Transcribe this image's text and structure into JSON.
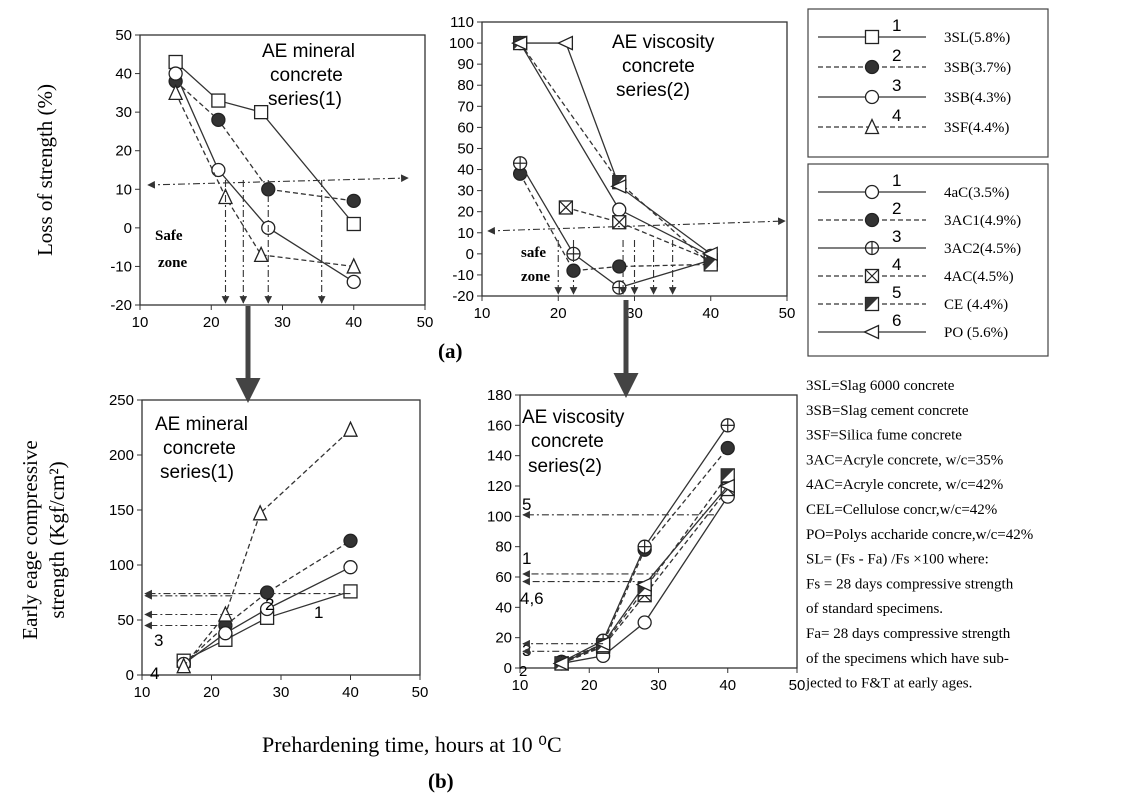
{
  "figure": {
    "label_a": "(a)",
    "label_b": "(b)",
    "x_axis_label": "Prehardening time, hours at 10 ⁰C"
  },
  "panels": {
    "a_left": {
      "title_lines": [
        "AE mineral",
        "concrete",
        "series(1)"
      ],
      "ylabel": "Loss of strength (%)",
      "xlim": [
        10,
        50
      ],
      "ylim": [
        -20,
        50
      ],
      "xticks": [
        10,
        20,
        30,
        40,
        50
      ],
      "yticks": [
        -20,
        -10,
        0,
        10,
        20,
        30,
        40,
        50
      ],
      "zone_label_lines": [
        "Safe",
        "zone"
      ]
    },
    "a_right": {
      "title_lines": [
        "AE viscosity",
        "concrete",
        "series(2)"
      ],
      "xlim": [
        10,
        50
      ],
      "ylim": [
        -20,
        110
      ],
      "xticks": [
        10,
        20,
        30,
        40,
        50
      ],
      "yticks": [
        -20,
        -10,
        0,
        10,
        20,
        30,
        40,
        50,
        60,
        70,
        80,
        90,
        100,
        110
      ],
      "zone_label_lines": [
        "safe",
        "zone"
      ]
    },
    "b_left": {
      "title_lines": [
        "AE mineral",
        "concrete",
        "series(1)"
      ],
      "ylabel_lines": [
        "Early eage compressive",
        "strength (Kgf/cm²)"
      ],
      "xlim": [
        10,
        50
      ],
      "ylim": [
        0,
        250
      ],
      "xticks": [
        10,
        20,
        30,
        40,
        50
      ],
      "yticks": [
        0,
        50,
        100,
        150,
        200,
        250
      ],
      "annotations": [
        "3",
        "4",
        "2",
        "1"
      ]
    },
    "b_right": {
      "title_lines": [
        "AE viscosity",
        "concrete",
        "series(2)"
      ],
      "xlim": [
        10,
        50
      ],
      "ylim": [
        0,
        180
      ],
      "xticks": [
        10,
        20,
        30,
        40,
        50
      ],
      "yticks": [
        0,
        20,
        40,
        60,
        80,
        100,
        120,
        140,
        160,
        180
      ],
      "annotations": [
        "5",
        "1",
        "4,6",
        "3",
        "2"
      ]
    }
  },
  "legend1": [
    {
      "num": "1",
      "label": "3SL(5.8%)"
    },
    {
      "num": "2",
      "label": "3SB(3.7%)"
    },
    {
      "num": "3",
      "label": "3SB(4.3%)"
    },
    {
      "num": "4",
      "label": "3SF(4.4%)"
    }
  ],
  "legend2": [
    {
      "num": "1",
      "label": "4aC(3.5%)"
    },
    {
      "num": "2",
      "label": "3AC1(4.9%)"
    },
    {
      "num": "3",
      "label": "3AC2(4.5%)"
    },
    {
      "num": "4",
      "label": "4AC(4.5%)"
    },
    {
      "num": "5",
      "label": "CE (4.4%)"
    },
    {
      "num": "6",
      "label": "PO (5.6%)"
    }
  ],
  "notes": [
    "3SL=Slag 6000 concrete",
    "3SB=Slag cement concrete",
    "3SF=Silica fume concrete",
    "3AC=Acryle concrete, w/c=35%",
    "4AC=Acryle concrete, w/c=42%",
    "CEL=Cellulose concr,w/c=42%",
    "PO=Polys accharide concre,w/c=42%",
    "SL= (Fs - Fa) /Fs ×100   where:",
    "Fs = 28 days compressive strength",
    "of  standard specimens.",
    "Fa= 28 days  compressive strength",
    "of the  specimens which have sub-",
    "jected to F&T at early ages."
  ],
  "chart_data": [
    {
      "type": "line",
      "title": "AE mineral concrete series(1)",
      "ylabel": "Loss of strength (%)",
      "xlim": [
        10,
        50
      ],
      "ylim": [
        -20,
        50
      ],
      "series": [
        {
          "name": "3SL(5.8%)",
          "marker": "square",
          "dash": "solid",
          "x": [
            15,
            21,
            27,
            40
          ],
          "y": [
            43,
            33,
            30,
            1
          ]
        },
        {
          "name": "3SB(3.7%)",
          "marker": "filled-circle",
          "dash": "dashed",
          "x": [
            15,
            21,
            28,
            40
          ],
          "y": [
            38,
            28,
            10,
            7
          ]
        },
        {
          "name": "3SB(4.3%)",
          "marker": "circle",
          "dash": "solid",
          "x": [
            15,
            21,
            28,
            40
          ],
          "y": [
            40,
            15,
            0,
            -14
          ]
        },
        {
          "name": "3SF(4.4%)",
          "marker": "triangle",
          "dash": "dashed",
          "x": [
            15,
            22,
            27,
            40
          ],
          "y": [
            35,
            8,
            -7,
            -10
          ]
        }
      ]
    },
    {
      "type": "line",
      "title": "AE viscosity concrete series(2)",
      "xlim": [
        10,
        50
      ],
      "ylim": [
        -20,
        110
      ],
      "series": [
        {
          "name": "4aC(3.5%)",
          "marker": "circle",
          "dash": "solid",
          "x": [
            15,
            28,
            40
          ],
          "y": [
            100,
            21,
            -1
          ]
        },
        {
          "name": "3AC1(4.9%)",
          "marker": "filled-circle",
          "dash": "dashed",
          "x": [
            15,
            22,
            28,
            40
          ],
          "y": [
            38,
            -8,
            -6,
            -5
          ]
        },
        {
          "name": "3AC2(4.5%)",
          "marker": "circled-plus",
          "dash": "solid",
          "x": [
            15,
            22,
            28,
            40
          ],
          "y": [
            43,
            0,
            -16,
            -3
          ]
        },
        {
          "name": "4AC(4.5%)",
          "marker": "boxed-x",
          "dash": "dashed",
          "x": [
            21,
            28,
            40
          ],
          "y": [
            22,
            15,
            -3
          ]
        },
        {
          "name": "CE (4.4%)",
          "marker": "half-square",
          "dash": "dashed",
          "x": [
            15,
            28,
            40
          ],
          "y": [
            100,
            34,
            -5
          ]
        },
        {
          "name": "PO (5.6%)",
          "marker": "left-triangle",
          "dash": "solid",
          "x": [
            15,
            21,
            28,
            40
          ],
          "y": [
            100,
            100,
            32,
            0
          ]
        }
      ]
    },
    {
      "type": "line",
      "title": "AE mineral concrete series(1)",
      "ylabel": "Early eage compressive strength (Kgf/cm²)",
      "xlim": [
        10,
        50
      ],
      "ylim": [
        0,
        250
      ],
      "series": [
        {
          "name": "3SL(5.8%)",
          "marker": "square",
          "dash": "solid",
          "x": [
            16,
            22,
            28,
            40
          ],
          "y": [
            13,
            32,
            52,
            76
          ]
        },
        {
          "name": "3SB(3.7%)",
          "marker": "filled-circle",
          "dash": "dashed",
          "x": [
            16,
            22,
            28,
            40
          ],
          "y": [
            10,
            45,
            75,
            122
          ]
        },
        {
          "name": "3SB(4.3%)",
          "marker": "circle",
          "dash": "solid",
          "x": [
            16,
            22,
            28,
            40
          ],
          "y": [
            10,
            38,
            60,
            98
          ]
        },
        {
          "name": "3SF(4.4%)",
          "marker": "triangle",
          "dash": "dashed",
          "x": [
            16,
            22,
            27,
            40
          ],
          "y": [
            8,
            55,
            147,
            223
          ]
        }
      ]
    },
    {
      "type": "line",
      "title": "AE viscosity concrete series(2)",
      "xlim": [
        10,
        50
      ],
      "ylim": [
        0,
        180
      ],
      "series": [
        {
          "name": "4aC(3.5%)",
          "marker": "circle",
          "dash": "solid",
          "x": [
            16,
            22,
            28,
            40
          ],
          "y": [
            3,
            8,
            30,
            113
          ]
        },
        {
          "name": "3AC1(4.9%)",
          "marker": "filled-circle",
          "dash": "dashed",
          "x": [
            16,
            22,
            28,
            40
          ],
          "y": [
            4,
            16,
            78,
            145
          ]
        },
        {
          "name": "3AC2(4.5%)",
          "marker": "circled-plus",
          "dash": "solid",
          "x": [
            16,
            22,
            28,
            40
          ],
          "y": [
            4,
            18,
            80,
            160
          ]
        },
        {
          "name": "4AC(4.5%)",
          "marker": "boxed-x",
          "dash": "dashed",
          "x": [
            16,
            22,
            28,
            40
          ],
          "y": [
            3,
            14,
            48,
            118
          ]
        },
        {
          "name": "CE (4.4%)",
          "marker": "half-square",
          "dash": "dashed",
          "x": [
            16,
            22,
            28,
            40
          ],
          "y": [
            3,
            15,
            52,
            127
          ]
        },
        {
          "name": "PO (5.6%)",
          "marker": "left-triangle",
          "dash": "solid",
          "x": [
            16,
            22,
            28,
            40
          ],
          "y": [
            3,
            16,
            55,
            120
          ]
        }
      ]
    }
  ]
}
